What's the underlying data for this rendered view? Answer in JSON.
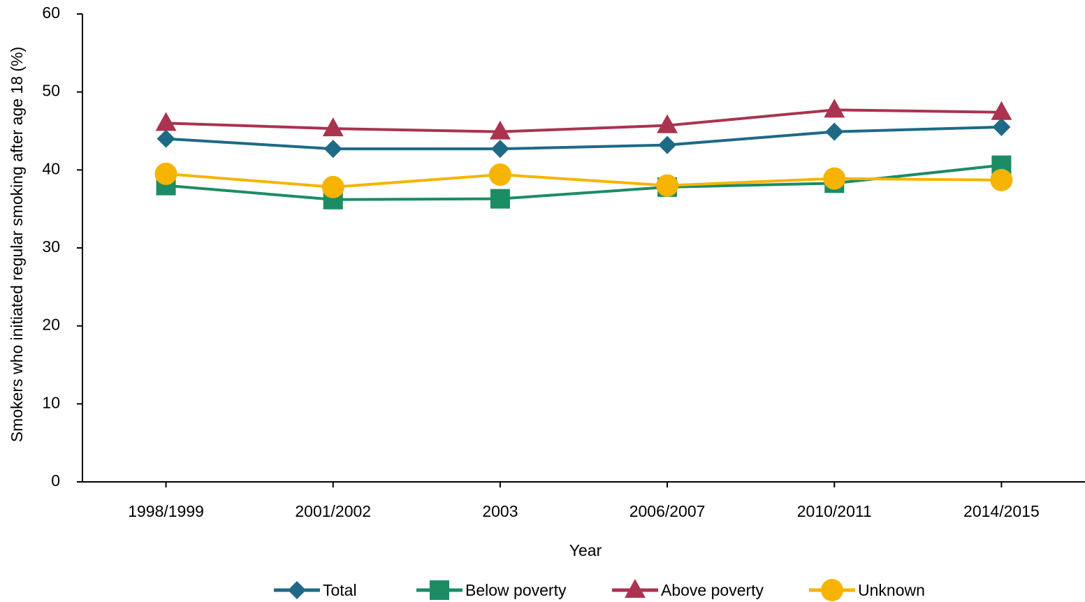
{
  "chart_data": {
    "type": "line",
    "x_label": "Year",
    "y_label": "Smokers who initiated regular smoking after age 18 (%)",
    "categories": [
      "1998/1999",
      "2001/2002",
      "2003",
      "2006/2007",
      "2010/2011",
      "2014/2015"
    ],
    "series": [
      {
        "name": "Total",
        "color": "#1e6a86",
        "marker": "diamond",
        "values": [
          44.0,
          42.7,
          42.7,
          43.2,
          44.9,
          45.5
        ]
      },
      {
        "name": "Below poverty",
        "color": "#1b8c63",
        "marker": "square",
        "values": [
          38.0,
          36.2,
          36.3,
          37.8,
          38.3,
          40.6
        ]
      },
      {
        "name": "Above poverty",
        "color": "#aa3350",
        "marker": "triangle",
        "values": [
          46.0,
          45.3,
          44.9,
          45.7,
          47.7,
          47.4
        ]
      },
      {
        "name": "Unknown",
        "color": "#f6b400",
        "marker": "circle",
        "values": [
          39.5,
          37.8,
          39.4,
          38.0,
          38.9,
          38.7
        ]
      }
    ],
    "ylim": [
      0,
      60
    ],
    "yticks": [
      0,
      10,
      20,
      30,
      40,
      50,
      60
    ],
    "grid": false,
    "legend": "bottom"
  }
}
